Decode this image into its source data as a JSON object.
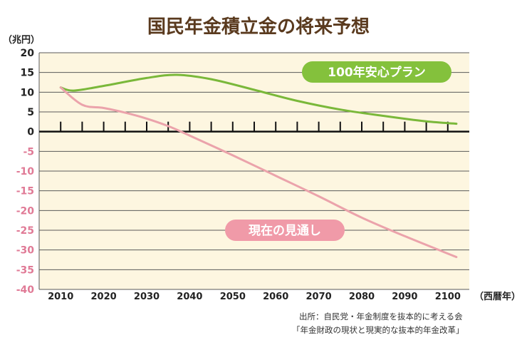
{
  "title": "国民年金積立金の将来予想",
  "y_unit": "（兆円）",
  "x_unit": "（西暦年）",
  "source": {
    "line1": "出所：自民党・年金制度を抜本的に考える会",
    "line2": "「年金財政の現状と現実的な抜本的年金改革」"
  },
  "colors": {
    "background": "#fdf6e0",
    "plan_line": "#7ab83a",
    "plan_label_bg": "#84c13c",
    "current_line": "#eba3ab",
    "current_label_bg": "#f09aa8",
    "negative_tick": "#e07a96",
    "title": "#5a3a1e"
  },
  "chart_data": {
    "type": "line",
    "title": "国民年金積立金の将来予想",
    "xlabel": "（西暦年）",
    "ylabel": "（兆円）",
    "xlim": [
      2005,
      2105
    ],
    "ylim": [
      -40,
      20
    ],
    "x_ticks": [
      2010,
      2020,
      2030,
      2040,
      2050,
      2060,
      2070,
      2080,
      2090,
      2100
    ],
    "y_ticks": [
      20,
      15,
      10,
      5,
      0,
      -5,
      -10,
      -15,
      -20,
      -25,
      -30,
      -35,
      -40
    ],
    "grid": true,
    "series": [
      {
        "name": "100年安心プラン",
        "x": [
          2010,
          2013,
          2020,
          2030,
          2037,
          2045,
          2055,
          2065,
          2075,
          2085,
          2095,
          2102
        ],
        "values": [
          11.2,
          10.4,
          11.6,
          13.6,
          14.4,
          13.3,
          10.6,
          7.8,
          5.6,
          4.0,
          2.6,
          2.0
        ]
      },
      {
        "name": "現在の見通し",
        "x": [
          2010,
          2015,
          2020,
          2025,
          2030,
          2035,
          2040,
          2050,
          2060,
          2070,
          2080,
          2090,
          2102
        ],
        "values": [
          11.2,
          6.8,
          6.0,
          4.8,
          3.3,
          1.4,
          -1.0,
          -6.0,
          -11.2,
          -16.4,
          -21.8,
          -26.5,
          -31.8
        ]
      }
    ]
  }
}
